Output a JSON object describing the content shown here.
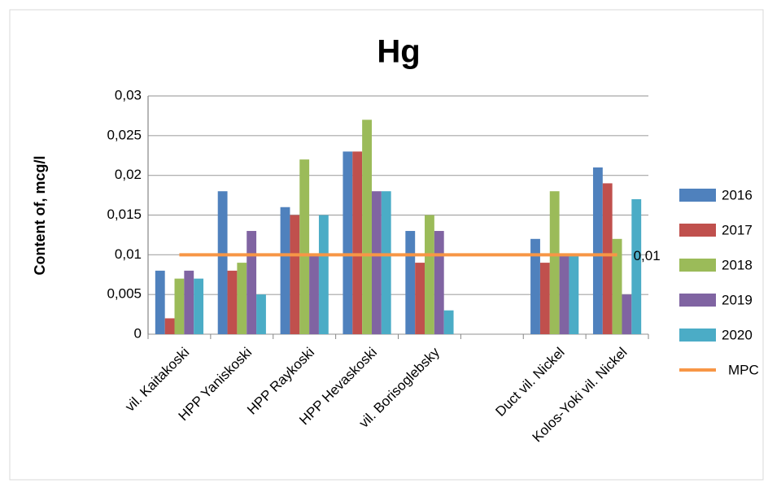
{
  "chart_data": {
    "type": "bar",
    "title": "Hg",
    "ylabel": "Content of,  mcg/l",
    "categories": [
      "vil. Kaitakoski",
      "HPP Yaniskoski",
      "HPP Raykoski",
      "HPP Hevaskoski",
      "vil. Borisoglebsky",
      null,
      "Duct vil. Nickel",
      "Kolos-Yoki vil. Nickel"
    ],
    "series": [
      {
        "name": "2016",
        "color": "#4f81bd",
        "values": [
          0.008,
          0.018,
          0.016,
          0.023,
          0.013,
          null,
          0.012,
          0.021
        ]
      },
      {
        "name": "2017",
        "color": "#c0504d",
        "values": [
          0.002,
          0.008,
          0.015,
          0.023,
          0.009,
          null,
          0.009,
          0.019
        ]
      },
      {
        "name": "2018",
        "color": "#9bbb59",
        "values": [
          0.007,
          0.009,
          0.022,
          0.027,
          0.015,
          null,
          0.018,
          0.012
        ]
      },
      {
        "name": "2019",
        "color": "#8064a2",
        "values": [
          0.008,
          0.013,
          0.01,
          0.018,
          0.013,
          null,
          0.01,
          0.005
        ]
      },
      {
        "name": "2020",
        "color": "#4bacc6",
        "values": [
          0.007,
          0.005,
          0.015,
          0.018,
          0.003,
          null,
          0.01,
          0.017
        ]
      },
      {
        "name": "MPC",
        "type": "line",
        "color": "#f79646",
        "values": [
          0.01,
          0.01,
          0.01,
          0.01,
          0.01,
          0.01,
          0.01,
          0.01
        ],
        "value_labels": [
          null,
          null,
          null,
          null,
          null,
          null,
          null,
          "0,01"
        ]
      }
    ],
    "ylim": [
      0,
      0.03
    ],
    "yticks": [
      0,
      {
        "value": 0.005,
        "label": "0,005"
      },
      {
        "value": 0.01,
        "label": "0,01"
      },
      {
        "value": 0.015,
        "label": "0,015"
      },
      {
        "value": 0.02,
        "label": "0,02"
      },
      {
        "value": 0.025,
        "label": "0,025"
      },
      {
        "value": 0.03,
        "label": "0,03"
      }
    ],
    "grid": true,
    "legend": "right"
  }
}
